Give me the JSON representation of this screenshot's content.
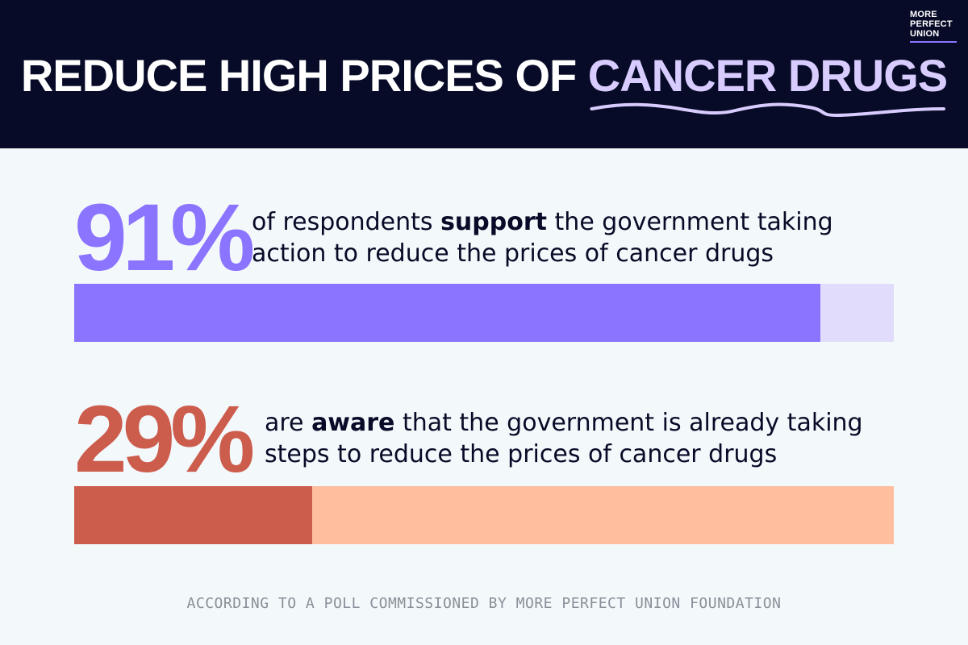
{
  "logo": {
    "line1": "MORE",
    "line2": "PERFECT",
    "line3": "UNION"
  },
  "header": {
    "title_plain": "REDUCE HIGH PRICES OF ",
    "title_accent": "CANCER DRUGS"
  },
  "colors": {
    "header_bg": "#070b27",
    "purple_fill": "#8b74ff",
    "purple_track": "#e2dcfc",
    "red_fill": "#cc5c4c",
    "red_track": "#ffbf9f",
    "accent_text": "#d8ccff"
  },
  "chart_data": {
    "type": "bar",
    "orientation": "horizontal",
    "categories": [
      "of respondents support the government taking action to reduce the prices of cancer drugs",
      "are aware that the government is already taking steps to reduce the prices of cancer drugs"
    ],
    "values": [
      91,
      29
    ],
    "unit": "%",
    "xlim": [
      0,
      100
    ],
    "grid": false
  },
  "stats": [
    {
      "value_label": "91%",
      "percent": 91,
      "text_before": "of respondents ",
      "text_bold": "support",
      "text_after": " the government taking",
      "text_line2": "action to reduce the prices of cancer drugs"
    },
    {
      "value_label": "29%",
      "percent": 29,
      "text_before": "are ",
      "text_bold": "aware",
      "text_after": " that the government is already taking",
      "text_line2": "steps to reduce the prices of cancer drugs"
    }
  ],
  "footnote": "ACCORDING TO A POLL COMMISSIONED BY MORE PERFECT UNION FOUNDATION"
}
